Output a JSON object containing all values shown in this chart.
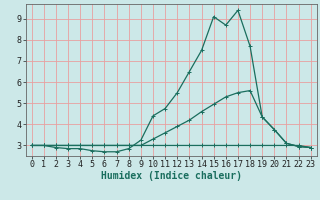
{
  "xlabel": "Humidex (Indice chaleur)",
  "xlim": [
    -0.5,
    23.5
  ],
  "ylim": [
    2.5,
    9.7
  ],
  "xticks": [
    0,
    1,
    2,
    3,
    4,
    5,
    6,
    7,
    8,
    9,
    10,
    11,
    12,
    13,
    14,
    15,
    16,
    17,
    18,
    19,
    20,
    21,
    22,
    23
  ],
  "yticks": [
    3,
    4,
    5,
    6,
    7,
    8,
    9
  ],
  "bg_color": "#cce8e8",
  "grid_color": "#e8a0a0",
  "line_color": "#1a6e5e",
  "line1_x": [
    0,
    1,
    2,
    3,
    4,
    5,
    6,
    7,
    8,
    9,
    10,
    11,
    12,
    13,
    14,
    15,
    16,
    17,
    18,
    19,
    20,
    21,
    22,
    23
  ],
  "line1_y": [
    3.0,
    3.0,
    2.9,
    2.85,
    2.85,
    2.75,
    2.7,
    2.7,
    2.85,
    3.25,
    4.4,
    4.75,
    5.5,
    6.5,
    7.5,
    9.1,
    8.7,
    9.4,
    7.7,
    4.35,
    3.75,
    3.1,
    2.95,
    2.9
  ],
  "line2_x": [
    0,
    1,
    2,
    3,
    4,
    5,
    6,
    7,
    8,
    9,
    10,
    11,
    12,
    13,
    14,
    15,
    16,
    17,
    18,
    19,
    20,
    21,
    22,
    23
  ],
  "line2_y": [
    3.0,
    3.0,
    3.0,
    3.0,
    3.0,
    3.0,
    3.0,
    3.0,
    3.0,
    3.0,
    3.3,
    3.6,
    3.9,
    4.2,
    4.6,
    4.95,
    5.3,
    5.5,
    5.6,
    4.35,
    3.75,
    3.1,
    2.95,
    2.9
  ],
  "line3_x": [
    0,
    1,
    2,
    3,
    4,
    5,
    6,
    7,
    8,
    9,
    10,
    11,
    12,
    13,
    14,
    15,
    16,
    17,
    18,
    19,
    20,
    21,
    22,
    23
  ],
  "line3_y": [
    3.0,
    3.0,
    3.0,
    3.0,
    3.0,
    3.0,
    3.0,
    3.0,
    3.0,
    3.0,
    3.0,
    3.0,
    3.0,
    3.0,
    3.0,
    3.0,
    3.0,
    3.0,
    3.0,
    3.0,
    3.0,
    3.0,
    3.0,
    2.9
  ]
}
